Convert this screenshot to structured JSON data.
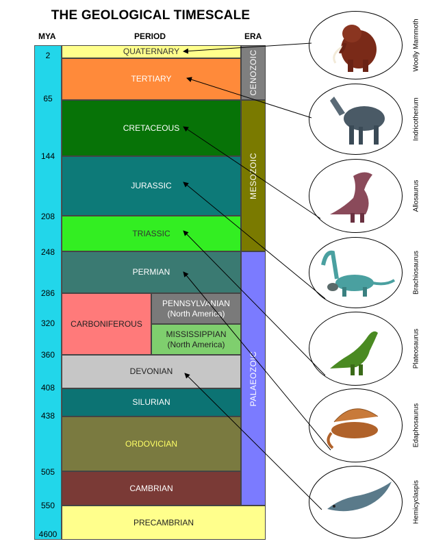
{
  "title": "THE GEOLOGICAL TIMESCALE",
  "headers": {
    "mya": "MYA",
    "period": "PERIOD",
    "era": "ERA"
  },
  "mya_ticks": [
    "2",
    "65",
    "144",
    "208",
    "248",
    "286",
    "320",
    "360",
    "408",
    "438",
    "505",
    "550",
    "4600"
  ],
  "periods": {
    "quaternary": "QUATERNARY",
    "tertiary": "TERTIARY",
    "cretaceous": "CRETACEOUS",
    "jurassic": "JURASSIC",
    "triassic": "TRIASSIC",
    "permian": "PERMIAN",
    "carboniferous": "CARBONIFEROUS",
    "pennsylvanian": "PENNSYLVANIAN",
    "pennsylvanian_sub": "(North America)",
    "mississippian": "MISSISSIPPIAN",
    "mississippian_sub": "(North America)",
    "devonian": "DEVONIAN",
    "silurian": "SILURIAN",
    "ordovician": "ORDOVICIAN",
    "cambrian": "CAMBRIAN",
    "precambrian": "PRECAMBRIAN"
  },
  "eras": {
    "cenozoic": "CENOZOIC",
    "mesozoic": "MESOZOIC",
    "palaeozoic": "PALAEOZOIC"
  },
  "animals": {
    "woolly_mammoth": "Woolly Mammoth",
    "indricotherium": "Indricotherium",
    "allosaurus": "Allosaurus",
    "brachiosaurus": "Brachiosaurus",
    "plateosaurus": "Plateosaurus",
    "edaphosaurus": "Edaphosaurus",
    "hemicyclaspis": "Hemicyclaspis"
  },
  "colors": {
    "mya_column": "#22d6ea",
    "quaternary": "#ffff8c",
    "tertiary": "#ff8a3a",
    "cretaceous": "#077307",
    "jurassic": "#0d7a78",
    "triassic": "#33ee22",
    "permian": "#3a7a72",
    "carboniferous": "#ff7a7a",
    "pennsylvanian": "#7a7a7a",
    "mississippian": "#7fcf6e",
    "devonian": "#c6c6c6",
    "silurian": "#0c7373",
    "ordovician": "#7a7a40",
    "cambrian": "#7a3a36",
    "precambrian": "#ffff8c",
    "cenozoic": "#7f7f7f",
    "mesozoic": "#7a7a00",
    "palaeozoic": "#7b7bff"
  }
}
